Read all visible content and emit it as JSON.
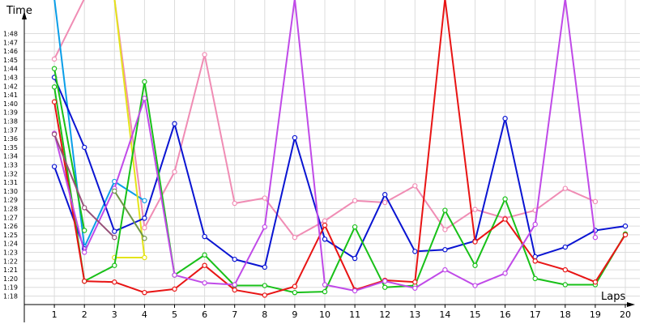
{
  "chart_data": {
    "type": "line",
    "title": "",
    "xlabel": "Laps",
    "ylabel": "Time",
    "x": [
      1,
      2,
      3,
      4,
      5,
      6,
      7,
      8,
      9,
      10,
      11,
      12,
      13,
      14,
      15,
      16,
      17,
      18,
      19,
      20
    ],
    "xlim": [
      0,
      20.6
    ],
    "ylim": [
      77.0,
      109.5
    ],
    "yticks": [
      78,
      79,
      80,
      81,
      82,
      83,
      84,
      85,
      86,
      87,
      88,
      89,
      90,
      91,
      92,
      93,
      94,
      95,
      96,
      97,
      98,
      99,
      100,
      101,
      102,
      103,
      104,
      105,
      106,
      107,
      108
    ],
    "ytick_labels": [
      "1:18",
      "1:19",
      "1:20",
      "1:21",
      "1:22",
      "1:23",
      "1:24",
      "1:25",
      "1:26",
      "1:27",
      "1:28",
      "1:29",
      "1:30",
      "1:31",
      "1:32",
      "1:33",
      "1:34",
      "1:35",
      "1:36",
      "1:37",
      "1:38",
      "1:39",
      "1:40",
      "1:41",
      "1:42",
      "1:43",
      "1:44",
      "1:45",
      "1:46",
      "1:47",
      "1:48"
    ],
    "grid": true,
    "legend": "none",
    "series": [
      {
        "color": "#f08cb4",
        "values": [
          105.1,
          112,
          112,
          85.8,
          92.2,
          105.6,
          88.6,
          89.2,
          84.7,
          86.6,
          88.9,
          88.7,
          90.6,
          85.6,
          87.9,
          86.9,
          87.8,
          90.3,
          88.8,
          null
        ]
      },
      {
        "color": "#0a9ee8",
        "values": [
          112,
          83.6,
          91.1,
          88.9,
          null,
          null,
          null,
          null,
          null,
          null,
          null,
          null,
          null,
          null,
          null,
          null,
          null,
          null,
          null,
          null
        ]
      },
      {
        "color": "#e4e41a",
        "values": [
          null,
          null,
          112,
          82.4,
          null,
          null,
          null,
          null,
          null,
          null,
          null,
          null,
          null,
          null,
          null,
          null,
          null,
          null,
          null,
          null
        ]
      },
      {
        "color": "#e4e41a",
        "values": [
          null,
          null,
          82.4,
          82.4,
          null,
          null,
          null,
          null,
          null,
          null,
          null,
          null,
          null,
          null,
          null,
          null,
          null,
          null,
          null,
          null
        ]
      },
      {
        "color": "#0a14d2",
        "values": [
          103.0,
          95.0,
          85.4,
          86.9,
          97.7,
          84.8,
          82.2,
          81.3,
          96.1,
          84.5,
          82.3,
          89.6,
          83.1,
          83.3,
          84.3,
          98.3,
          82.5,
          83.6,
          85.5,
          86.0
        ]
      },
      {
        "color": "#0a14d2",
        "values": [
          92.8,
          83.4,
          null,
          null,
          null,
          null,
          null,
          null,
          null,
          null,
          null,
          null,
          null,
          null,
          null,
          null,
          null,
          null,
          null,
          null
        ]
      },
      {
        "color": "#18c018",
        "values": [
          101.9,
          79.7,
          81.5,
          102.5,
          80.4,
          82.7,
          79.2,
          79.2,
          78.4,
          78.5,
          85.9,
          79.0,
          79.2,
          87.8,
          81.5,
          89.1,
          80.0,
          79.3,
          79.3,
          85.1
        ]
      },
      {
        "color": "#18c018",
        "values": [
          104.0,
          85.5,
          null,
          null,
          null,
          null,
          null,
          null,
          null,
          null,
          null,
          null,
          null,
          null,
          null,
          null,
          null,
          null,
          null,
          null
        ]
      },
      {
        "color": "#e81414",
        "values": [
          100.2,
          79.7,
          79.6,
          78.4,
          78.8,
          81.5,
          78.7,
          78.1,
          79.1,
          86.1,
          78.7,
          79.8,
          79.6,
          112,
          84.2,
          86.8,
          82.0,
          81.0,
          79.6,
          85.0
        ]
      },
      {
        "color": "#c04ae8",
        "values": [
          96.6,
          83.0,
          90.3,
          100.6,
          80.4,
          79.5,
          79.3,
          85.9,
          112,
          79.3,
          78.6,
          79.7,
          78.9,
          81.0,
          79.2,
          80.6,
          86.2,
          112,
          84.7,
          null
        ]
      },
      {
        "color": "#965078",
        "values": [
          96.5,
          88.1,
          84.7,
          null,
          null,
          null,
          null,
          null,
          null,
          null,
          null,
          null,
          null,
          null,
          null,
          null,
          null,
          null,
          null,
          null
        ]
      },
      {
        "color": "#6e9646",
        "values": [
          null,
          null,
          90.0,
          84.6,
          null,
          null,
          null,
          null,
          null,
          null,
          null,
          null,
          null,
          null,
          null,
          null,
          null,
          null,
          null,
          null
        ]
      }
    ]
  }
}
